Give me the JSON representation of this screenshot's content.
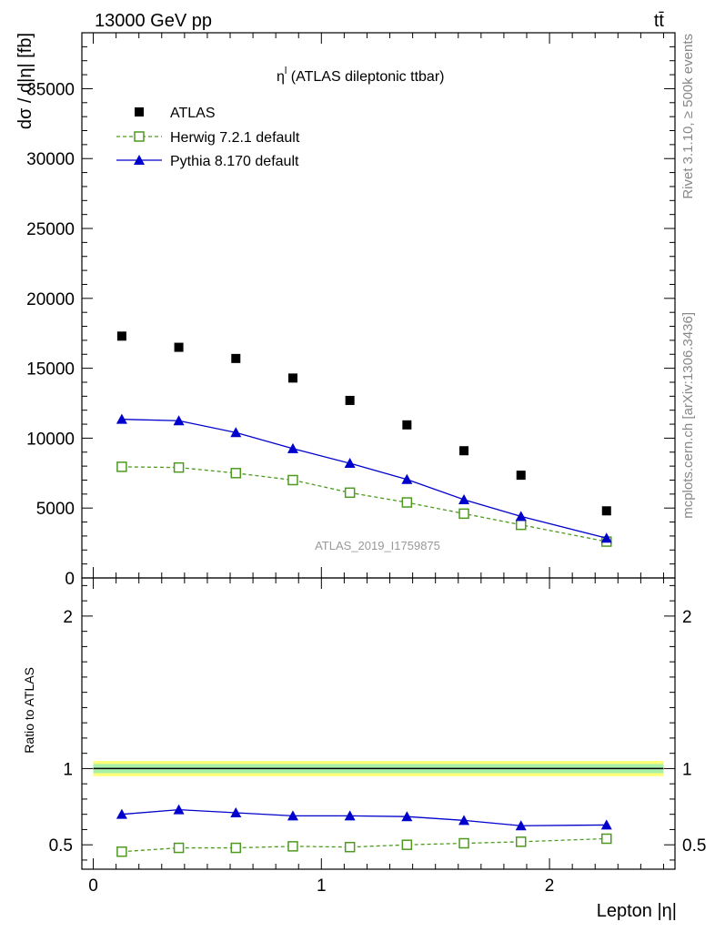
{
  "header": {
    "energy_label": "13000 GeV pp",
    "process_label": "tt̄"
  },
  "side_labels": {
    "rivet": "Rivet 3.1.10, ≥ 500k events",
    "mcplots": "mcplots.cern.ch [arXiv:1306.3436]"
  },
  "watermark": "ATLAS_2019_I1759875",
  "chart_data": [
    {
      "type": "scatter",
      "panel": "main",
      "title": "ηl (ATLAS dileptonic ttbar)",
      "title_main": "η",
      "title_sup": "l",
      "title_rest": " (ATLAS dileptonic ttbar)",
      "ylabel": "dσ / d|η| [fb]",
      "xlabel": "",
      "xlim": [
        -0.05,
        2.55
      ],
      "ylim": [
        0,
        39000
      ],
      "yticks": [
        0,
        5000,
        10000,
        15000,
        20000,
        25000,
        30000,
        35000
      ],
      "ytick_labels": [
        "0",
        "5000",
        "10000",
        "15000",
        "20000",
        "25000",
        "30000",
        "35000"
      ],
      "legend_position": "top-left",
      "x": [
        0.125,
        0.375,
        0.625,
        0.875,
        1.125,
        1.375,
        1.625,
        1.875,
        2.25
      ],
      "series": [
        {
          "name": "ATLAS",
          "color": "#000000",
          "marker": "filled-square",
          "line": "none",
          "values": [
            17300,
            16500,
            15700,
            14300,
            12700,
            10950,
            9100,
            7350,
            4800
          ]
        },
        {
          "name": "Herwig 7.2.1 default",
          "color": "#4d9a1f",
          "marker": "open-square",
          "line": "dashed",
          "values": [
            7950,
            7900,
            7500,
            7000,
            6100,
            5400,
            4600,
            3800,
            2600
          ]
        },
        {
          "name": "Pythia 8.170 default",
          "color": "#0000cc",
          "marker": "filled-triangle",
          "line": "solid",
          "values": [
            11350,
            11250,
            10400,
            9250,
            8200,
            7050,
            5600,
            4400,
            2850
          ]
        }
      ]
    },
    {
      "type": "scatter",
      "panel": "ratio",
      "ylabel": "Ratio to ATLAS",
      "xlabel": "Lepton |η|",
      "xlim": [
        -0.05,
        2.55
      ],
      "ylim": [
        0.34,
        2.25
      ],
      "xticks": [
        0,
        1,
        2
      ],
      "xtick_labels": [
        "0",
        "1",
        "2"
      ],
      "yticks": [
        0.5,
        1,
        2
      ],
      "ytick_labels": [
        "0.5",
        "1",
        "2"
      ],
      "band_range": [
        0,
        2.5
      ],
      "band_outer": [
        0.95,
        1.05
      ],
      "band_inner": [
        0.97,
        1.03
      ],
      "band_outer_color": "#ffff77",
      "band_inner_color": "#a8f0a8",
      "x": [
        0.125,
        0.375,
        0.625,
        0.875,
        1.125,
        1.375,
        1.625,
        1.875,
        2.25
      ],
      "series": [
        {
          "name": "Herwig 7.2.1 default",
          "color": "#4d9a1f",
          "marker": "open-square",
          "line": "dashed",
          "values": [
            0.455,
            0.48,
            0.48,
            0.49,
            0.485,
            0.5,
            0.51,
            0.52,
            0.54
          ]
        },
        {
          "name": "Pythia 8.170 default",
          "color": "#0000cc",
          "marker": "filled-triangle",
          "line": "solid",
          "values": [
            0.7,
            0.73,
            0.71,
            0.69,
            0.69,
            0.685,
            0.66,
            0.625,
            0.63
          ]
        }
      ]
    }
  ]
}
